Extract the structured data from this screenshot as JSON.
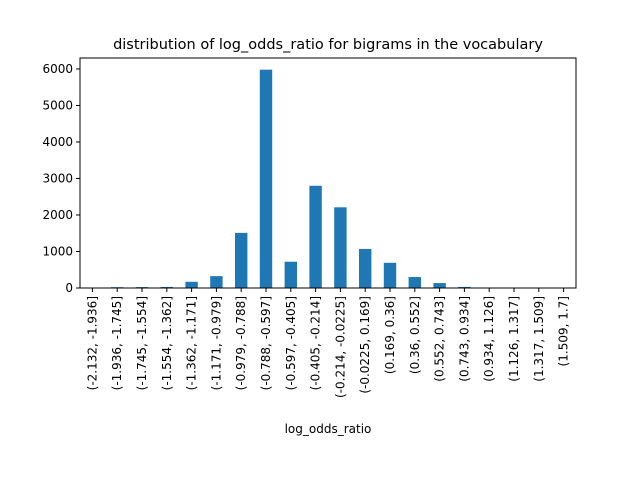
{
  "chart_data": {
    "type": "bar",
    "title": "distribution of log_odds_ratio for bigrams in the vocabulary",
    "xlabel": "log_odds_ratio",
    "ylabel": "",
    "categories": [
      "(-2.132, -1.936]",
      "(-1.936, -1.745]",
      "(-1.745, -1.554]",
      "(-1.554, -1.362]",
      "(-1.362, -1.171]",
      "(-1.171, -0.979]",
      "(-0.979, -0.788]",
      "(-0.788, -0.597]",
      "(-0.597, -0.405]",
      "(-0.405, -0.214]",
      "(-0.214, -0.0225]",
      "(-0.0225, 0.169]",
      "(0.169, 0.36]",
      "(0.36, 0.552]",
      "(0.552, 0.743]",
      "(0.743, 0.934]",
      "(0.934, 1.126]",
      "(1.126, 1.317]",
      "(1.317, 1.509]",
      "(1.509, 1.7]"
    ],
    "values": [
      3,
      22,
      25,
      28,
      170,
      325,
      1510,
      5980,
      720,
      2800,
      2210,
      1070,
      690,
      300,
      135,
      30,
      5,
      2,
      1,
      2
    ],
    "ylim": [
      0,
      6300
    ],
    "yticks": [
      0,
      1000,
      2000,
      3000,
      4000,
      5000,
      6000
    ],
    "grid": false,
    "bar_color": "#1f77b4"
  }
}
